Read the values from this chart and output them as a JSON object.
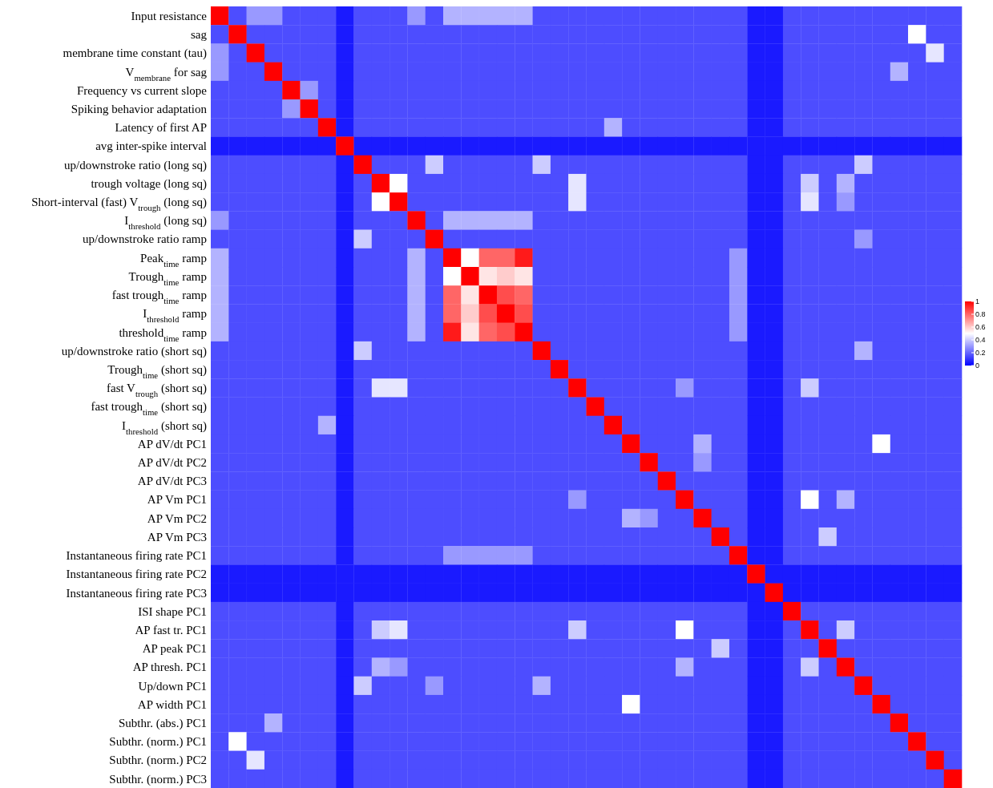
{
  "chart_data": {
    "type": "heatmap",
    "categories": [
      null,
      null,
      null,
      null,
      null,
      null,
      null,
      null,
      null,
      null,
      null,
      null,
      null,
      null,
      null,
      null,
      null,
      null,
      null,
      null,
      null,
      null,
      null,
      null,
      null,
      null,
      null,
      null,
      null,
      null,
      null,
      null,
      null,
      null,
      null,
      null,
      null,
      null,
      null,
      null,
      null,
      null
    ],
    "y_categories": [
      "Input resistance",
      "sag",
      "membrane time constant (tau)",
      "V$_{membrane}$ for sag",
      "Frequency vs current slope",
      "Spiking behavior adaptation",
      "Latency of first AP",
      "avg inter-spike interval",
      "up/downstroke ratio (long sq)",
      "trough voltage (long sq)",
      "Short-interval (fast) V$_{trough}$ (long sq)",
      "I$_{threshold}$ (long sq)",
      "up/downstroke ratio ramp",
      "Peak$_{time}$ ramp",
      "Trough$_{time}$ ramp",
      "fast trough$_{time}$ ramp",
      "I$_{threshold}$ ramp",
      "threshold$_{time}$ ramp",
      "up/downstroke ratio (short sq)",
      "Trough$_{time}$ (short sq)",
      "fast V$_{trough}$ (short sq)",
      "fast trough$_{time}$ (short sq)",
      "I$_{threshold}$ (short sq)",
      "AP dV/dt PC1",
      "AP dV/dt PC2",
      "AP dV/dt PC3",
      "AP Vm PC1",
      "AP Vm PC2",
      "AP Vm PC3",
      "Instantaneous firing rate PC1",
      "Instantaneous firing rate PC2",
      "Instantaneous firing rate PC3",
      "ISI shape PC1",
      "AP fast tr. PC1",
      "AP peak PC1",
      "AP thresh. PC1",
      "Up/down PC1",
      "AP width PC1",
      "Subthr. (abs.) PC1",
      "Subthr. (norm.) PC1",
      "Subthr. (norm.) PC2",
      "Subthr. (norm.) PC3"
    ],
    "cells": [
      [
        1,
        0.15,
        0.3,
        0.3,
        0.15,
        0.15,
        0.15,
        0.05,
        0.15,
        0.15,
        0.15,
        0.3,
        0.15,
        0.35,
        0.35,
        0.35,
        0.35,
        0.35,
        0.15,
        0.15,
        0.15,
        0.15,
        0.15,
        0.15,
        0.15,
        0.15,
        0.15,
        0.15,
        0.15,
        0.15,
        0.05,
        0.05,
        0.15,
        0.15,
        0.15,
        0.15,
        0.15,
        0.15,
        0.15,
        0.15,
        0.15,
        0.15
      ],
      [
        0.15,
        1,
        0.15,
        0.15,
        0.15,
        0.15,
        0.15,
        0.05,
        0.15,
        0.15,
        0.15,
        0.15,
        0.15,
        0.15,
        0.15,
        0.15,
        0.15,
        0.15,
        0.15,
        0.15,
        0.15,
        0.15,
        0.15,
        0.15,
        0.15,
        0.15,
        0.15,
        0.15,
        0.15,
        0.15,
        0.05,
        0.05,
        0.15,
        0.15,
        0.15,
        0.15,
        0.15,
        0.15,
        0.15,
        0.5,
        0.15,
        0.15
      ],
      [
        0.3,
        0.15,
        1,
        0.15,
        0.15,
        0.15,
        0.15,
        0.05,
        0.15,
        0.15,
        0.15,
        0.15,
        0.15,
        0.15,
        0.15,
        0.15,
        0.15,
        0.15,
        0.15,
        0.15,
        0.15,
        0.15,
        0.15,
        0.15,
        0.15,
        0.15,
        0.15,
        0.15,
        0.15,
        0.15,
        0.05,
        0.05,
        0.15,
        0.15,
        0.15,
        0.15,
        0.15,
        0.15,
        0.15,
        0.15,
        0.45,
        0.15
      ],
      [
        0.3,
        0.15,
        0.15,
        1,
        0.15,
        0.15,
        0.15,
        0.05,
        0.15,
        0.15,
        0.15,
        0.15,
        0.15,
        0.15,
        0.15,
        0.15,
        0.15,
        0.15,
        0.15,
        0.15,
        0.15,
        0.15,
        0.15,
        0.15,
        0.15,
        0.15,
        0.15,
        0.15,
        0.15,
        0.15,
        0.05,
        0.05,
        0.15,
        0.15,
        0.15,
        0.15,
        0.15,
        0.15,
        0.35,
        0.15,
        0.15,
        0.15
      ],
      [
        0.15,
        0.15,
        0.15,
        0.15,
        1,
        0.3,
        0.15,
        0.05,
        0.15,
        0.15,
        0.15,
        0.15,
        0.15,
        0.15,
        0.15,
        0.15,
        0.15,
        0.15,
        0.15,
        0.15,
        0.15,
        0.15,
        0.15,
        0.15,
        0.15,
        0.15,
        0.15,
        0.15,
        0.15,
        0.15,
        0.05,
        0.05,
        0.15,
        0.15,
        0.15,
        0.15,
        0.15,
        0.15,
        0.15,
        0.15,
        0.15,
        0.15
      ],
      [
        0.15,
        0.15,
        0.15,
        0.15,
        0.3,
        1,
        0.15,
        0.05,
        0.15,
        0.15,
        0.15,
        0.15,
        0.15,
        0.15,
        0.15,
        0.15,
        0.15,
        0.15,
        0.15,
        0.15,
        0.15,
        0.15,
        0.15,
        0.15,
        0.15,
        0.15,
        0.15,
        0.15,
        0.15,
        0.15,
        0.05,
        0.05,
        0.15,
        0.15,
        0.15,
        0.15,
        0.15,
        0.15,
        0.15,
        0.15,
        0.15,
        0.15
      ],
      [
        0.15,
        0.15,
        0.15,
        0.15,
        0.15,
        0.15,
        1,
        0.05,
        0.15,
        0.15,
        0.15,
        0.15,
        0.15,
        0.15,
        0.15,
        0.15,
        0.15,
        0.15,
        0.15,
        0.15,
        0.15,
        0.15,
        0.35,
        0.15,
        0.15,
        0.15,
        0.15,
        0.15,
        0.15,
        0.15,
        0.05,
        0.05,
        0.15,
        0.15,
        0.15,
        0.15,
        0.15,
        0.15,
        0.15,
        0.15,
        0.15,
        0.15
      ],
      [
        0.05,
        0.05,
        0.05,
        0.05,
        0.05,
        0.05,
        0.05,
        1,
        0.05,
        0.05,
        0.05,
        0.05,
        0.05,
        0.05,
        0.05,
        0.05,
        0.05,
        0.05,
        0.05,
        0.05,
        0.05,
        0.05,
        0.05,
        0.05,
        0.05,
        0.05,
        0.05,
        0.05,
        0.05,
        0.05,
        0.05,
        0.05,
        0.05,
        0.05,
        0.05,
        0.05,
        0.05,
        0.05,
        0.05,
        0.05,
        0.05,
        0.05
      ],
      [
        0.15,
        0.15,
        0.15,
        0.15,
        0.15,
        0.15,
        0.15,
        0.05,
        1,
        0.15,
        0.15,
        0.15,
        0.4,
        0.15,
        0.15,
        0.15,
        0.15,
        0.15,
        0.4,
        0.15,
        0.15,
        0.15,
        0.15,
        0.15,
        0.15,
        0.15,
        0.15,
        0.15,
        0.15,
        0.15,
        0.05,
        0.05,
        0.15,
        0.15,
        0.15,
        0.15,
        0.4,
        0.15,
        0.15,
        0.15,
        0.15,
        0.15
      ],
      [
        0.15,
        0.15,
        0.15,
        0.15,
        0.15,
        0.15,
        0.15,
        0.05,
        0.15,
        1,
        0.5,
        0.15,
        0.15,
        0.15,
        0.15,
        0.15,
        0.15,
        0.15,
        0.15,
        0.15,
        0.45,
        0.15,
        0.15,
        0.15,
        0.15,
        0.15,
        0.15,
        0.15,
        0.15,
        0.15,
        0.05,
        0.05,
        0.15,
        0.4,
        0.15,
        0.35,
        0.15,
        0.15,
        0.15,
        0.15,
        0.15,
        0.15
      ],
      [
        0.15,
        0.15,
        0.15,
        0.15,
        0.15,
        0.15,
        0.15,
        0.05,
        0.15,
        0.5,
        1,
        0.15,
        0.15,
        0.15,
        0.15,
        0.15,
        0.15,
        0.15,
        0.15,
        0.15,
        0.45,
        0.15,
        0.15,
        0.15,
        0.15,
        0.15,
        0.15,
        0.15,
        0.15,
        0.15,
        0.05,
        0.05,
        0.15,
        0.45,
        0.15,
        0.3,
        0.15,
        0.15,
        0.15,
        0.15,
        0.15,
        0.15
      ],
      [
        0.3,
        0.15,
        0.15,
        0.15,
        0.15,
        0.15,
        0.15,
        0.05,
        0.15,
        0.15,
        0.15,
        1,
        0.15,
        0.35,
        0.35,
        0.35,
        0.35,
        0.35,
        0.15,
        0.15,
        0.15,
        0.15,
        0.15,
        0.15,
        0.15,
        0.15,
        0.15,
        0.15,
        0.15,
        0.15,
        0.05,
        0.05,
        0.15,
        0.15,
        0.15,
        0.15,
        0.15,
        0.15,
        0.15,
        0.15,
        0.15,
        0.15
      ],
      [
        0.15,
        0.15,
        0.15,
        0.15,
        0.15,
        0.15,
        0.15,
        0.05,
        0.4,
        0.15,
        0.15,
        0.15,
        1,
        0.15,
        0.15,
        0.15,
        0.15,
        0.15,
        0.15,
        0.15,
        0.15,
        0.15,
        0.15,
        0.15,
        0.15,
        0.15,
        0.15,
        0.15,
        0.15,
        0.15,
        0.05,
        0.05,
        0.15,
        0.15,
        0.15,
        0.15,
        0.3,
        0.15,
        0.15,
        0.15,
        0.15,
        0.15
      ],
      [
        0.35,
        0.15,
        0.15,
        0.15,
        0.15,
        0.15,
        0.15,
        0.05,
        0.15,
        0.15,
        0.15,
        0.35,
        0.15,
        1,
        0.5,
        0.8,
        0.8,
        0.95,
        0.15,
        0.15,
        0.15,
        0.15,
        0.15,
        0.15,
        0.15,
        0.15,
        0.15,
        0.15,
        0.15,
        0.3,
        0.05,
        0.05,
        0.15,
        0.15,
        0.15,
        0.15,
        0.15,
        0.15,
        0.15,
        0.15,
        0.15,
        0.15
      ],
      [
        0.35,
        0.15,
        0.15,
        0.15,
        0.15,
        0.15,
        0.15,
        0.05,
        0.15,
        0.15,
        0.15,
        0.35,
        0.15,
        0.5,
        1,
        0.55,
        0.6,
        0.55,
        0.15,
        0.15,
        0.15,
        0.15,
        0.15,
        0.15,
        0.15,
        0.15,
        0.15,
        0.15,
        0.15,
        0.3,
        0.05,
        0.05,
        0.15,
        0.15,
        0.15,
        0.15,
        0.15,
        0.15,
        0.15,
        0.15,
        0.15,
        0.15
      ],
      [
        0.35,
        0.15,
        0.15,
        0.15,
        0.15,
        0.15,
        0.15,
        0.05,
        0.15,
        0.15,
        0.15,
        0.35,
        0.15,
        0.8,
        0.55,
        1,
        0.85,
        0.8,
        0.15,
        0.15,
        0.15,
        0.15,
        0.15,
        0.15,
        0.15,
        0.15,
        0.15,
        0.15,
        0.15,
        0.3,
        0.05,
        0.05,
        0.15,
        0.15,
        0.15,
        0.15,
        0.15,
        0.15,
        0.15,
        0.15,
        0.15,
        0.15
      ],
      [
        0.35,
        0.15,
        0.15,
        0.15,
        0.15,
        0.15,
        0.15,
        0.05,
        0.15,
        0.15,
        0.15,
        0.35,
        0.15,
        0.8,
        0.6,
        0.85,
        1,
        0.85,
        0.15,
        0.15,
        0.15,
        0.15,
        0.15,
        0.15,
        0.15,
        0.15,
        0.15,
        0.15,
        0.15,
        0.3,
        0.05,
        0.05,
        0.15,
        0.15,
        0.15,
        0.15,
        0.15,
        0.15,
        0.15,
        0.15,
        0.15,
        0.15
      ],
      [
        0.35,
        0.15,
        0.15,
        0.15,
        0.15,
        0.15,
        0.15,
        0.05,
        0.15,
        0.15,
        0.15,
        0.35,
        0.15,
        0.95,
        0.55,
        0.8,
        0.85,
        1,
        0.15,
        0.15,
        0.15,
        0.15,
        0.15,
        0.15,
        0.15,
        0.15,
        0.15,
        0.15,
        0.15,
        0.3,
        0.05,
        0.05,
        0.15,
        0.15,
        0.15,
        0.15,
        0.15,
        0.15,
        0.15,
        0.15,
        0.15,
        0.15
      ],
      [
        0.15,
        0.15,
        0.15,
        0.15,
        0.15,
        0.15,
        0.15,
        0.05,
        0.4,
        0.15,
        0.15,
        0.15,
        0.15,
        0.15,
        0.15,
        0.15,
        0.15,
        0.15,
        1,
        0.15,
        0.15,
        0.15,
        0.15,
        0.15,
        0.15,
        0.15,
        0.15,
        0.15,
        0.15,
        0.15,
        0.05,
        0.05,
        0.15,
        0.15,
        0.15,
        0.15,
        0.35,
        0.15,
        0.15,
        0.15,
        0.15,
        0.15
      ],
      [
        0.15,
        0.15,
        0.15,
        0.15,
        0.15,
        0.15,
        0.15,
        0.05,
        0.15,
        0.15,
        0.15,
        0.15,
        0.15,
        0.15,
        0.15,
        0.15,
        0.15,
        0.15,
        0.15,
        1,
        0.15,
        0.15,
        0.15,
        0.15,
        0.15,
        0.15,
        0.15,
        0.15,
        0.15,
        0.15,
        0.05,
        0.05,
        0.15,
        0.15,
        0.15,
        0.15,
        0.15,
        0.15,
        0.15,
        0.15,
        0.15,
        0.15
      ],
      [
        0.15,
        0.15,
        0.15,
        0.15,
        0.15,
        0.15,
        0.15,
        0.05,
        0.15,
        0.45,
        0.45,
        0.15,
        0.15,
        0.15,
        0.15,
        0.15,
        0.15,
        0.15,
        0.15,
        0.15,
        1,
        0.15,
        0.15,
        0.15,
        0.15,
        0.15,
        0.3,
        0.15,
        0.15,
        0.15,
        0.05,
        0.05,
        0.15,
        0.4,
        0.15,
        0.15,
        0.15,
        0.15,
        0.15,
        0.15,
        0.15,
        0.15
      ],
      [
        0.15,
        0.15,
        0.15,
        0.15,
        0.15,
        0.15,
        0.15,
        0.05,
        0.15,
        0.15,
        0.15,
        0.15,
        0.15,
        0.15,
        0.15,
        0.15,
        0.15,
        0.15,
        0.15,
        0.15,
        0.15,
        1,
        0.15,
        0.15,
        0.15,
        0.15,
        0.15,
        0.15,
        0.15,
        0.15,
        0.05,
        0.05,
        0.15,
        0.15,
        0.15,
        0.15,
        0.15,
        0.15,
        0.15,
        0.15,
        0.15,
        0.15
      ],
      [
        0.15,
        0.15,
        0.15,
        0.15,
        0.15,
        0.15,
        0.35,
        0.05,
        0.15,
        0.15,
        0.15,
        0.15,
        0.15,
        0.15,
        0.15,
        0.15,
        0.15,
        0.15,
        0.15,
        0.15,
        0.15,
        0.15,
        1,
        0.15,
        0.15,
        0.15,
        0.15,
        0.15,
        0.15,
        0.15,
        0.05,
        0.05,
        0.15,
        0.15,
        0.15,
        0.15,
        0.15,
        0.15,
        0.15,
        0.15,
        0.15,
        0.15
      ],
      [
        0.15,
        0.15,
        0.15,
        0.15,
        0.15,
        0.15,
        0.15,
        0.05,
        0.15,
        0.15,
        0.15,
        0.15,
        0.15,
        0.15,
        0.15,
        0.15,
        0.15,
        0.15,
        0.15,
        0.15,
        0.15,
        0.15,
        0.15,
        1,
        0.15,
        0.15,
        0.15,
        0.35,
        0.15,
        0.15,
        0.05,
        0.05,
        0.15,
        0.15,
        0.15,
        0.15,
        0.15,
        0.5,
        0.15,
        0.15,
        0.15,
        0.15
      ],
      [
        0.15,
        0.15,
        0.15,
        0.15,
        0.15,
        0.15,
        0.15,
        0.05,
        0.15,
        0.15,
        0.15,
        0.15,
        0.15,
        0.15,
        0.15,
        0.15,
        0.15,
        0.15,
        0.15,
        0.15,
        0.15,
        0.15,
        0.15,
        0.15,
        1,
        0.15,
        0.15,
        0.3,
        0.15,
        0.15,
        0.05,
        0.05,
        0.15,
        0.15,
        0.15,
        0.15,
        0.15,
        0.15,
        0.15,
        0.15,
        0.15,
        0.15
      ],
      [
        0.15,
        0.15,
        0.15,
        0.15,
        0.15,
        0.15,
        0.15,
        0.05,
        0.15,
        0.15,
        0.15,
        0.15,
        0.15,
        0.15,
        0.15,
        0.15,
        0.15,
        0.15,
        0.15,
        0.15,
        0.15,
        0.15,
        0.15,
        0.15,
        0.15,
        1,
        0.15,
        0.15,
        0.15,
        0.15,
        0.05,
        0.05,
        0.15,
        0.15,
        0.15,
        0.15,
        0.15,
        0.15,
        0.15,
        0.15,
        0.15,
        0.15
      ],
      [
        0.15,
        0.15,
        0.15,
        0.15,
        0.15,
        0.15,
        0.15,
        0.05,
        0.15,
        0.15,
        0.15,
        0.15,
        0.15,
        0.15,
        0.15,
        0.15,
        0.15,
        0.15,
        0.15,
        0.15,
        0.3,
        0.15,
        0.15,
        0.15,
        0.15,
        0.15,
        1,
        0.15,
        0.15,
        0.15,
        0.05,
        0.05,
        0.15,
        0.5,
        0.15,
        0.35,
        0.15,
        0.15,
        0.15,
        0.15,
        0.15,
        0.15
      ],
      [
        0.15,
        0.15,
        0.15,
        0.15,
        0.15,
        0.15,
        0.15,
        0.05,
        0.15,
        0.15,
        0.15,
        0.15,
        0.15,
        0.15,
        0.15,
        0.15,
        0.15,
        0.15,
        0.15,
        0.15,
        0.15,
        0.15,
        0.15,
        0.35,
        0.3,
        0.15,
        0.15,
        1,
        0.15,
        0.15,
        0.05,
        0.05,
        0.15,
        0.15,
        0.15,
        0.15,
        0.15,
        0.15,
        0.15,
        0.15,
        0.15,
        0.15
      ],
      [
        0.15,
        0.15,
        0.15,
        0.15,
        0.15,
        0.15,
        0.15,
        0.05,
        0.15,
        0.15,
        0.15,
        0.15,
        0.15,
        0.15,
        0.15,
        0.15,
        0.15,
        0.15,
        0.15,
        0.15,
        0.15,
        0.15,
        0.15,
        0.15,
        0.15,
        0.15,
        0.15,
        0.15,
        1,
        0.15,
        0.05,
        0.05,
        0.15,
        0.15,
        0.4,
        0.15,
        0.15,
        0.15,
        0.15,
        0.15,
        0.15,
        0.15
      ],
      [
        0.15,
        0.15,
        0.15,
        0.15,
        0.15,
        0.15,
        0.15,
        0.05,
        0.15,
        0.15,
        0.15,
        0.15,
        0.15,
        0.3,
        0.3,
        0.3,
        0.3,
        0.3,
        0.15,
        0.15,
        0.15,
        0.15,
        0.15,
        0.15,
        0.15,
        0.15,
        0.15,
        0.15,
        0.15,
        1,
        0.05,
        0.05,
        0.15,
        0.15,
        0.15,
        0.15,
        0.15,
        0.15,
        0.15,
        0.15,
        0.15,
        0.15
      ],
      [
        0.05,
        0.05,
        0.05,
        0.05,
        0.05,
        0.05,
        0.05,
        0.05,
        0.05,
        0.05,
        0.05,
        0.05,
        0.05,
        0.05,
        0.05,
        0.05,
        0.05,
        0.05,
        0.05,
        0.05,
        0.05,
        0.05,
        0.05,
        0.05,
        0.05,
        0.05,
        0.05,
        0.05,
        0.05,
        0.05,
        1,
        0.05,
        0.05,
        0.05,
        0.05,
        0.05,
        0.05,
        0.05,
        0.05,
        0.05,
        0.05,
        0.05
      ],
      [
        0.05,
        0.05,
        0.05,
        0.05,
        0.05,
        0.05,
        0.05,
        0.05,
        0.05,
        0.05,
        0.05,
        0.05,
        0.05,
        0.05,
        0.05,
        0.05,
        0.05,
        0.05,
        0.05,
        0.05,
        0.05,
        0.05,
        0.05,
        0.05,
        0.05,
        0.05,
        0.05,
        0.05,
        0.05,
        0.05,
        0.05,
        1,
        0.05,
        0.05,
        0.05,
        0.05,
        0.05,
        0.05,
        0.05,
        0.05,
        0.05,
        0.05
      ],
      [
        0.15,
        0.15,
        0.15,
        0.15,
        0.15,
        0.15,
        0.15,
        0.05,
        0.15,
        0.15,
        0.15,
        0.15,
        0.15,
        0.15,
        0.15,
        0.15,
        0.15,
        0.15,
        0.15,
        0.15,
        0.15,
        0.15,
        0.15,
        0.15,
        0.15,
        0.15,
        0.15,
        0.15,
        0.15,
        0.15,
        0.05,
        0.05,
        1,
        0.15,
        0.15,
        0.15,
        0.15,
        0.15,
        0.15,
        0.15,
        0.15,
        0.15
      ],
      [
        0.15,
        0.15,
        0.15,
        0.15,
        0.15,
        0.15,
        0.15,
        0.05,
        0.15,
        0.4,
        0.45,
        0.15,
        0.15,
        0.15,
        0.15,
        0.15,
        0.15,
        0.15,
        0.15,
        0.15,
        0.4,
        0.15,
        0.15,
        0.15,
        0.15,
        0.15,
        0.5,
        0.15,
        0.15,
        0.15,
        0.05,
        0.05,
        0.15,
        1,
        0.15,
        0.4,
        0.15,
        0.15,
        0.15,
        0.15,
        0.15,
        0.15
      ],
      [
        0.15,
        0.15,
        0.15,
        0.15,
        0.15,
        0.15,
        0.15,
        0.05,
        0.15,
        0.15,
        0.15,
        0.15,
        0.15,
        0.15,
        0.15,
        0.15,
        0.15,
        0.15,
        0.15,
        0.15,
        0.15,
        0.15,
        0.15,
        0.15,
        0.15,
        0.15,
        0.15,
        0.15,
        0.4,
        0.15,
        0.05,
        0.05,
        0.15,
        0.15,
        1,
        0.15,
        0.15,
        0.15,
        0.15,
        0.15,
        0.15,
        0.15
      ],
      [
        0.15,
        0.15,
        0.15,
        0.15,
        0.15,
        0.15,
        0.15,
        0.05,
        0.15,
        0.35,
        0.3,
        0.15,
        0.15,
        0.15,
        0.15,
        0.15,
        0.15,
        0.15,
        0.15,
        0.15,
        0.15,
        0.15,
        0.15,
        0.15,
        0.15,
        0.15,
        0.35,
        0.15,
        0.15,
        0.15,
        0.05,
        0.05,
        0.15,
        0.4,
        0.15,
        1,
        0.15,
        0.15,
        0.15,
        0.15,
        0.15,
        0.15
      ],
      [
        0.15,
        0.15,
        0.15,
        0.15,
        0.15,
        0.15,
        0.15,
        0.05,
        0.4,
        0.15,
        0.15,
        0.15,
        0.3,
        0.15,
        0.15,
        0.15,
        0.15,
        0.15,
        0.35,
        0.15,
        0.15,
        0.15,
        0.15,
        0.15,
        0.15,
        0.15,
        0.15,
        0.15,
        0.15,
        0.15,
        0.05,
        0.05,
        0.15,
        0.15,
        0.15,
        0.15,
        1,
        0.15,
        0.15,
        0.15,
        0.15,
        0.15
      ],
      [
        0.15,
        0.15,
        0.15,
        0.15,
        0.15,
        0.15,
        0.15,
        0.05,
        0.15,
        0.15,
        0.15,
        0.15,
        0.15,
        0.15,
        0.15,
        0.15,
        0.15,
        0.15,
        0.15,
        0.15,
        0.15,
        0.15,
        0.15,
        0.5,
        0.15,
        0.15,
        0.15,
        0.15,
        0.15,
        0.15,
        0.05,
        0.05,
        0.15,
        0.15,
        0.15,
        0.15,
        0.15,
        1,
        0.15,
        0.15,
        0.15,
        0.15
      ],
      [
        0.15,
        0.15,
        0.15,
        0.35,
        0.15,
        0.15,
        0.15,
        0.05,
        0.15,
        0.15,
        0.15,
        0.15,
        0.15,
        0.15,
        0.15,
        0.15,
        0.15,
        0.15,
        0.15,
        0.15,
        0.15,
        0.15,
        0.15,
        0.15,
        0.15,
        0.15,
        0.15,
        0.15,
        0.15,
        0.15,
        0.05,
        0.05,
        0.15,
        0.15,
        0.15,
        0.15,
        0.15,
        0.15,
        1,
        0.15,
        0.15,
        0.15
      ],
      [
        0.15,
        0.5,
        0.15,
        0.15,
        0.15,
        0.15,
        0.15,
        0.05,
        0.15,
        0.15,
        0.15,
        0.15,
        0.15,
        0.15,
        0.15,
        0.15,
        0.15,
        0.15,
        0.15,
        0.15,
        0.15,
        0.15,
        0.15,
        0.15,
        0.15,
        0.15,
        0.15,
        0.15,
        0.15,
        0.15,
        0.05,
        0.05,
        0.15,
        0.15,
        0.15,
        0.15,
        0.15,
        0.15,
        0.15,
        1,
        0.15,
        0.15
      ],
      [
        0.15,
        0.15,
        0.45,
        0.15,
        0.15,
        0.15,
        0.15,
        0.05,
        0.15,
        0.15,
        0.15,
        0.15,
        0.15,
        0.15,
        0.15,
        0.15,
        0.15,
        0.15,
        0.15,
        0.15,
        0.15,
        0.15,
        0.15,
        0.15,
        0.15,
        0.15,
        0.15,
        0.15,
        0.15,
        0.15,
        0.05,
        0.05,
        0.15,
        0.15,
        0.15,
        0.15,
        0.15,
        0.15,
        0.15,
        0.15,
        1,
        0.15
      ],
      [
        0.15,
        0.15,
        0.15,
        0.15,
        0.15,
        0.15,
        0.15,
        0.05,
        0.15,
        0.15,
        0.15,
        0.15,
        0.15,
        0.15,
        0.15,
        0.15,
        0.15,
        0.15,
        0.15,
        0.15,
        0.15,
        0.15,
        0.15,
        0.15,
        0.15,
        0.15,
        0.15,
        0.15,
        0.15,
        0.15,
        0.05,
        0.05,
        0.15,
        0.15,
        0.15,
        0.15,
        0.15,
        0.15,
        0.15,
        0.15,
        0.15,
        1
      ]
    ],
    "clim": [
      0,
      1
    ],
    "cticks": [
      0,
      0.2,
      0.4,
      0.6,
      0.8,
      1
    ]
  }
}
